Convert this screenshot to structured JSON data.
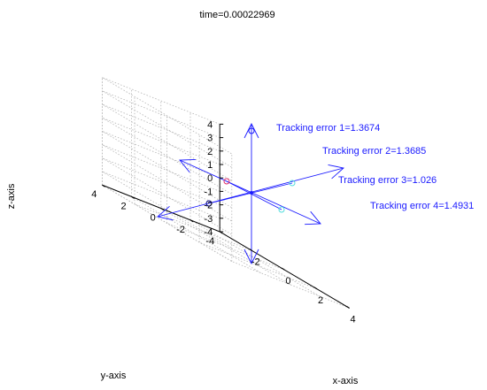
{
  "chart_data": {
    "type": "line3d",
    "title": "time=0.00022969",
    "xlabel": "x-axis",
    "ylabel": "y-axis",
    "zlabel": "z-axis",
    "xlim": [
      -4,
      4
    ],
    "ylim": [
      -4,
      4
    ],
    "zlim": [
      -4,
      4
    ],
    "xticks": [
      "-2",
      "0",
      "2",
      "4"
    ],
    "yticks": [
      "-4",
      "-2",
      "0",
      "2",
      "4"
    ],
    "zticks": [
      "-4",
      "-3",
      "-2",
      "-1",
      "0",
      "1",
      "2",
      "3",
      "4"
    ],
    "grid": true,
    "colors": {
      "lines": "#1a1aff",
      "annotations": "#1a1aff",
      "markers": [
        "#1a1aff",
        "#e0306a",
        "#55dddd",
        "#55dddd",
        "#000080"
      ]
    },
    "annotations": [
      {
        "label": "Tracking error 1=1.3674"
      },
      {
        "label": "Tracking error 2=1.3685"
      },
      {
        "label": "Tracking error 3=1.026"
      },
      {
        "label": "Tracking error 4=1.4931"
      }
    ]
  }
}
